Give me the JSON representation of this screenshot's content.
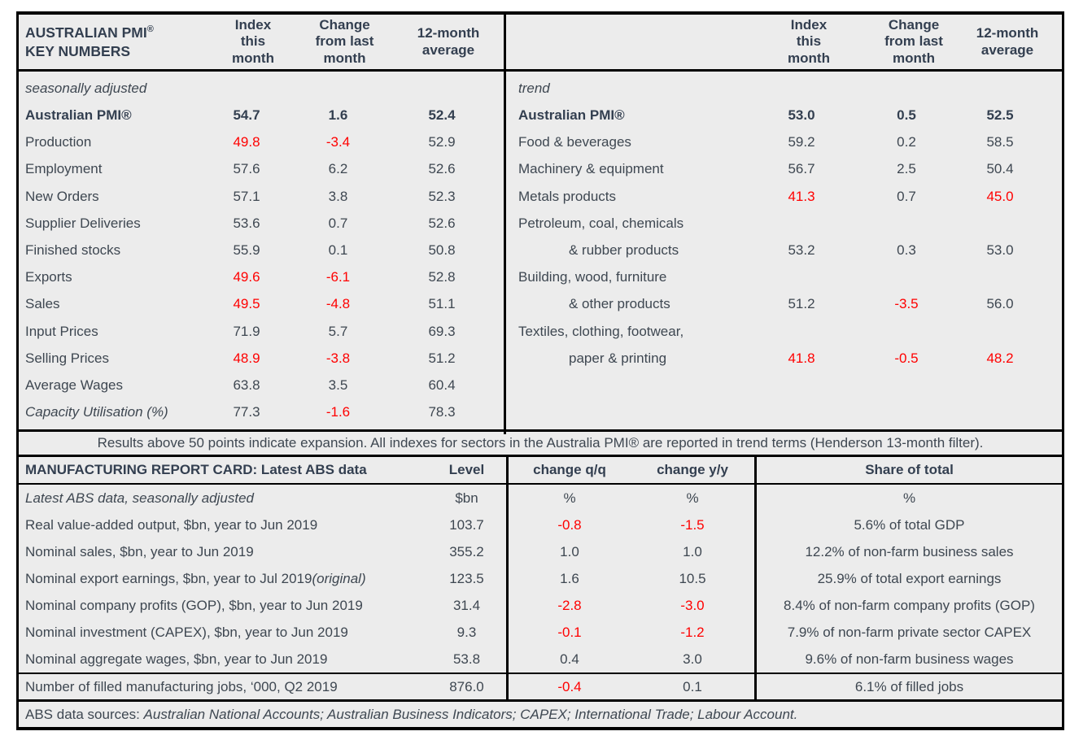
{
  "top": {
    "title_line1": "AUSTRALIAN PMI",
    "title_reg": "®",
    "title_line2": "KEY NUMBERS",
    "columns": [
      "Index\nthis\nmonth",
      "Change\nfrom last\nmonth",
      "12-month\naverage"
    ],
    "columns_right": [
      "Index\nthis\nmonth",
      "Change\nfrom last\nmonth",
      "12-month\naverage"
    ],
    "left": {
      "rows": [
        {
          "label": "seasonally adjusted",
          "style": "section"
        },
        {
          "label": "Australian PMI®",
          "style": "bold",
          "v": [
            "54.7",
            "1.6",
            "52.4"
          ]
        },
        {
          "label": "Production",
          "v": [
            "49.8",
            "-3.4",
            "52.9"
          ],
          "red": [
            true,
            true,
            false
          ]
        },
        {
          "label": "Employment",
          "v": [
            "57.6",
            "6.2",
            "52.6"
          ]
        },
        {
          "label": "New Orders",
          "v": [
            "57.1",
            "3.8",
            "52.3"
          ]
        },
        {
          "label": "Supplier Deliveries",
          "v": [
            "53.6",
            "0.7",
            "52.6"
          ]
        },
        {
          "label": "Finished stocks",
          "v": [
            "55.9",
            "0.1",
            "50.8"
          ]
        },
        {
          "label": "Exports",
          "v": [
            "49.6",
            "-6.1",
            "52.8"
          ],
          "red": [
            true,
            true,
            false
          ]
        },
        {
          "label": "Sales",
          "v": [
            "49.5",
            "-4.8",
            "51.1"
          ],
          "red": [
            true,
            true,
            false
          ]
        },
        {
          "label": "Input Prices",
          "v": [
            "71.9",
            "5.7",
            "69.3"
          ]
        },
        {
          "label": "Selling Prices",
          "v": [
            "48.9",
            "-3.8",
            "51.2"
          ],
          "red": [
            true,
            true,
            false
          ]
        },
        {
          "label": "Average Wages",
          "v": [
            "63.8",
            "3.5",
            "60.4"
          ]
        },
        {
          "label": "Capacity Utilisation (%)",
          "style": "section",
          "v": [
            "77.3",
            "-1.6",
            "78.3"
          ],
          "red": [
            false,
            true,
            false
          ]
        }
      ]
    },
    "right": {
      "rows": [
        {
          "label": "trend",
          "style": "section"
        },
        {
          "label": "Australian PMI®",
          "style": "bold",
          "v": [
            "53.0",
            "0.5",
            "52.5"
          ]
        },
        {
          "label": "Food & beverages",
          "v": [
            "59.2",
            "0.2",
            "58.5"
          ]
        },
        {
          "label": "Machinery & equipment",
          "v": [
            "56.7",
            "2.5",
            "50.4"
          ]
        },
        {
          "label": "Metals products",
          "v": [
            "41.3",
            "0.7",
            "45.0"
          ],
          "red": [
            true,
            false,
            true
          ]
        },
        {
          "label": "Petroleum, coal, chemicals"
        },
        {
          "label": "& rubber products",
          "style": "indent",
          "v": [
            "53.2",
            "0.3",
            "53.0"
          ]
        },
        {
          "label": "Building, wood, furniture"
        },
        {
          "label": "& other products",
          "style": "indent",
          "v": [
            "51.2",
            "-3.5",
            "56.0"
          ],
          "red": [
            false,
            true,
            false
          ]
        },
        {
          "label": "Textiles, clothing, footwear,"
        },
        {
          "label": "paper & printing",
          "style": "indent",
          "v": [
            "41.8",
            "-0.5",
            "48.2"
          ],
          "red": [
            true,
            true,
            true
          ]
        },
        {
          "label": ""
        },
        {
          "label": ""
        }
      ]
    }
  },
  "note": "Results above 50 points indicate expansion. All indexes for sectors in the Australia PMI® are reported in trend terms (Henderson 13-month filter).",
  "bottom": {
    "title": "MANUFACTURING REPORT CARD: Latest ABS data",
    "col_level": "Level",
    "col_qq": "change q/q",
    "col_yy": "change y/y",
    "col_share": "Share of total",
    "rows": [
      {
        "label": "Latest ABS data, seasonally adjusted",
        "style": "italic",
        "level": "$bn",
        "qq": "%",
        "yy": "%",
        "share": "%"
      },
      {
        "label": "Real value-added output, $bn, year to Jun 2019",
        "level": "103.7",
        "qq": "-0.8",
        "yy": "-1.5",
        "share": "5.6% of total GDP",
        "qq_red": true,
        "yy_red": true
      },
      {
        "label": "Nominal sales, $bn, year to Jun 2019",
        "level": "355.2",
        "qq": "1.0",
        "yy": "1.0",
        "share": "12.2% of non-farm business sales"
      },
      {
        "label": "Nominal export earnings, $bn, year to Jul 2019",
        "label_suffix": " (original)",
        "level": "123.5",
        "qq": "1.6",
        "yy": "10.5",
        "share": "25.9% of total export earnings"
      },
      {
        "label": "Nominal company profits (GOP), $bn, year to Jun 2019",
        "level": "31.4",
        "qq": "-2.8",
        "yy": "-3.0",
        "share": "8.4% of non-farm company profits (GOP)",
        "qq_red": true,
        "yy_red": true
      },
      {
        "label": "Nominal investment (CAPEX), $bn, year to Jun 2019",
        "level": "9.3",
        "qq": "-0.1",
        "yy": "-1.2",
        "share": "7.9% of non-farm private sector CAPEX",
        "qq_red": true,
        "yy_red": true
      },
      {
        "label": "Nominal aggregate wages, $bn, year to Jun 2019",
        "level": "53.8",
        "qq": "0.4",
        "yy": "3.0",
        "share": "9.6% of non-farm business wages"
      }
    ],
    "jobs_row": {
      "label": "Number of filled manufacturing jobs, ‘000, Q2 2019",
      "level": "876.0",
      "qq": "-0.4",
      "yy": "0.1",
      "share": "6.1% of filled jobs",
      "qq_red": true
    }
  },
  "footer": {
    "prefix": "ABS data sources: ",
    "sources": "Australian National Accounts; Australian Business Indicators; CAPEX; International Trade; Labour Account."
  }
}
